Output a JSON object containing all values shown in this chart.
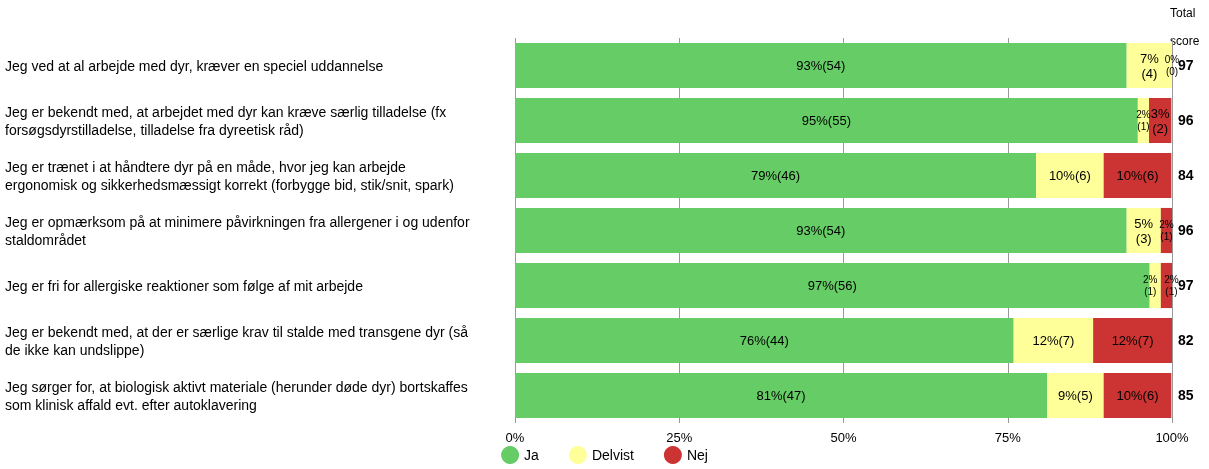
{
  "chart_data": {
    "type": "bar",
    "orientation": "horizontal",
    "stacked": true,
    "categories": [
      "Jeg ved at al arbejde med dyr, kræver en speciel uddannelse",
      "Jeg er bekendt med, at arbejdet med dyr kan kræve særlig tilladelse (fx forsøgsdyrstilladelse, tilladelse fra dyreetisk råd)",
      "Jeg er trænet i at håndtere dyr på en måde, hvor jeg kan arbejde ergonomisk og sikkerhedsmæssigt korrekt (forbygge bid, stik/snit, spark)",
      "Jeg er opmærksom på at minimere påvirkningen fra allergener i og udenfor staldområdet",
      "Jeg er fri for allergiske reaktioner som følge af mit arbejde",
      "Jeg er bekendt med, at der er særlige krav til stalde med transgene dyr (så de ikke kan undslippe)",
      "Jeg sørger for, at biologisk aktivt materiale (herunder døde dyr) bortskaffes som klinisk affald evt. efter autoklavering"
    ],
    "series": [
      {
        "name": "Ja",
        "color": "#66cc66",
        "values": [
          93.1,
          94.8,
          79.3,
          93.1,
          96.6,
          75.9,
          81.0
        ],
        "value_labels": [
          "93%(54)",
          "95%(55)",
          "79%(46)",
          "93%(54)",
          "97%(56)",
          "76%(44)",
          "81%(47)"
        ]
      },
      {
        "name": "Delvist",
        "color": "#ffff99",
        "values": [
          6.9,
          1.7,
          10.3,
          5.2,
          1.7,
          12.1,
          8.6
        ],
        "value_labels": [
          "7%(4)",
          "2%(1)",
          "10%(6)",
          "5%(3)",
          "2%(1)",
          "12%(7)",
          "9%(5)"
        ]
      },
      {
        "name": "Nej",
        "color": "#cc3333",
        "values": [
          0,
          3.4,
          10.3,
          1.7,
          1.7,
          12.1,
          10.3
        ],
        "value_labels": [
          "0%(0)",
          "3%(2)",
          "10%(6)",
          "2%(1)",
          "2%(1)",
          "12%(7)",
          "10%(6)"
        ]
      }
    ],
    "annotations": [
      "Total score",
      "97",
      "96",
      "84",
      "96",
      "97",
      "82",
      "85"
    ],
    "xlim": [
      0,
      100
    ],
    "xticks": [
      {
        "value": 0,
        "label": "0%"
      },
      {
        "value": 25,
        "label": "25%"
      },
      {
        "value": 50,
        "label": "50%"
      },
      {
        "value": 75,
        "label": "75%"
      },
      {
        "value": 100,
        "label": "100%"
      }
    ],
    "grid": "x",
    "legend": "bottom"
  }
}
